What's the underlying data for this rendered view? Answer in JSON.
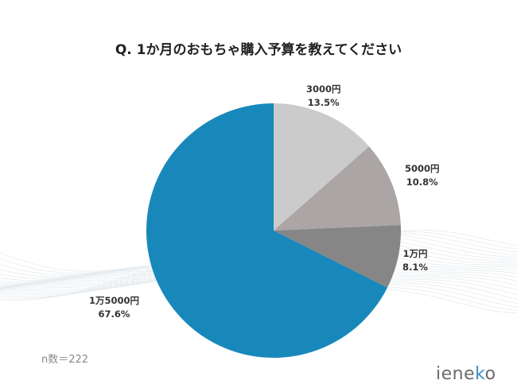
{
  "page": {
    "title": "Q. 1か月のおもちゃ購入予算を教えてください",
    "sample_note": "n数＝222",
    "brand": "ieneko"
  },
  "chart_data": {
    "type": "pie",
    "title": "Q. 1か月のおもちゃ購入予算を教えてください",
    "slices": [
      {
        "label": "3000円",
        "value": 13.5,
        "value_text": "13.5%",
        "color": "#cbcbcb"
      },
      {
        "label": "5000円",
        "value": 10.8,
        "value_text": "10.8%",
        "color": "#aba6a5"
      },
      {
        "label": "1万円",
        "value": 8.1,
        "value_text": "8.1%",
        "color": "#868686"
      },
      {
        "label": "1万5000円",
        "value": 67.6,
        "value_text": "67.6%",
        "color": "#1888bb"
      }
    ],
    "start": "12 o'clock",
    "direction": "clockwise"
  }
}
